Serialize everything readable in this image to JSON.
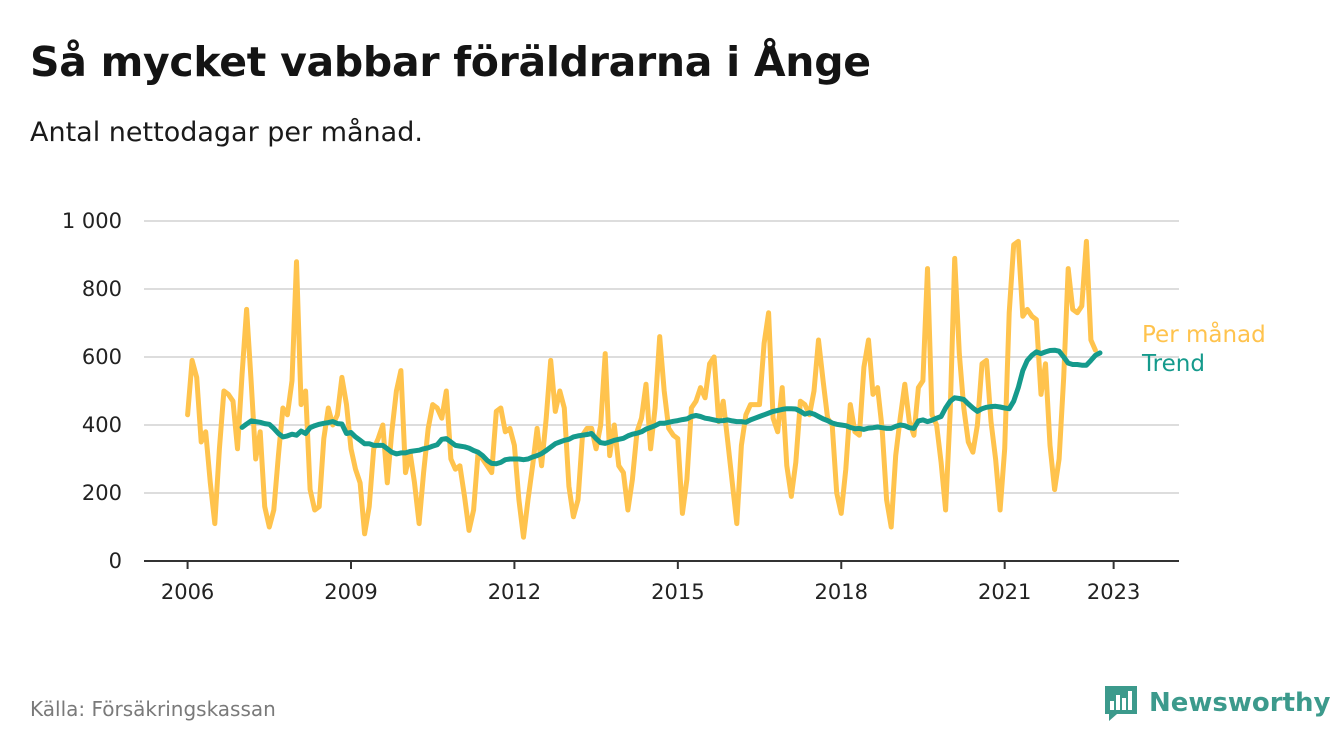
{
  "header": {
    "title": "Så mycket vabbar föräldrarna i Ånge",
    "subtitle": "Antal nettodagar per månad."
  },
  "footer": {
    "source": "Källa: Försäkringskassan",
    "brand": "Newsworthy",
    "brand_icon": "bar-chart-speech-bubble-icon"
  },
  "colors": {
    "per_manad": "#ffc34d",
    "trend": "#159a8c",
    "grid": "#dddddd",
    "axis": "#333333",
    "brand": "#3c9a8c"
  },
  "chart_data": {
    "type": "line",
    "x_start": 2006.0,
    "x_step": 0.08333,
    "xlim": [
      2005.2,
      2024.2
    ],
    "ylim": [
      0,
      1000
    ],
    "yticks": [
      0,
      200,
      400,
      600,
      800,
      1000
    ],
    "ytick_labels": [
      "0",
      "200",
      "400",
      "600",
      "800",
      "1 000"
    ],
    "xticks": [
      2006,
      2009,
      2012,
      2015,
      2018,
      2021,
      2023
    ],
    "xtick_labels": [
      "2006",
      "2009",
      "2012",
      "2015",
      "2018",
      "2021",
      "2023"
    ],
    "grid": true,
    "legend": "right, at line ends",
    "series": [
      {
        "name": "Per månad",
        "values": [
          430,
          590,
          540,
          350,
          380,
          230,
          110,
          330,
          500,
          490,
          470,
          330,
          550,
          740,
          530,
          300,
          380,
          160,
          100,
          150,
          310,
          450,
          430,
          530,
          880,
          460,
          500,
          210,
          150,
          160,
          360,
          450,
          400,
          430,
          540,
          460,
          330,
          270,
          230,
          80,
          160,
          330,
          360,
          400,
          230,
          380,
          500,
          560,
          260,
          320,
          230,
          110,
          260,
          390,
          460,
          450,
          420,
          500,
          300,
          270,
          280,
          190,
          90,
          150,
          320,
          300,
          280,
          260,
          440,
          450,
          380,
          390,
          340,
          180,
          70,
          180,
          280,
          390,
          280,
          420,
          590,
          440,
          500,
          450,
          220,
          130,
          180,
          370,
          390,
          390,
          330,
          400,
          610,
          310,
          400,
          280,
          260,
          150,
          240,
          380,
          420,
          520,
          330,
          450,
          660,
          500,
          390,
          370,
          360,
          140,
          240,
          450,
          470,
          510,
          480,
          580,
          600,
          410,
          470,
          350,
          230,
          110,
          340,
          430,
          460,
          460,
          460,
          640,
          730,
          420,
          380,
          510,
          280,
          190,
          290,
          470,
          460,
          430,
          500,
          650,
          530,
          420,
          400,
          200,
          140,
          270,
          460,
          380,
          370,
          570,
          650,
          490,
          510,
          390,
          180,
          100,
          310,
          420,
          520,
          410,
          370,
          510,
          530,
          860,
          430,
          400,
          290,
          150,
          440,
          890,
          610,
          450,
          350,
          320,
          400,
          580,
          590,
          410,
          300,
          150,
          330,
          730,
          930,
          940,
          720,
          740,
          720,
          710,
          490,
          580,
          340,
          210,
          300,
          540,
          860,
          740,
          730,
          750,
          940,
          650,
          620
        ]
      },
      {
        "name": "Trend",
        "start_index": 12,
        "values": [
          393,
          403,
          412,
          410,
          408,
          404,
          402,
          390,
          375,
          365,
          368,
          373,
          370,
          382,
          375,
          392,
          398,
          402,
          405,
          407,
          410,
          404,
          403,
          375,
          378,
          365,
          355,
          345,
          345,
          340,
          340,
          340,
          330,
          320,
          315,
          318,
          318,
          322,
          324,
          326,
          330,
          333,
          338,
          342,
          358,
          360,
          350,
          340,
          338,
          336,
          332,
          325,
          320,
          310,
          296,
          287,
          286,
          290,
          298,
          300,
          300,
          300,
          298,
          300,
          306,
          310,
          316,
          325,
          335,
          345,
          350,
          355,
          358,
          365,
          368,
          370,
          372,
          375,
          360,
          348,
          346,
          350,
          355,
          358,
          361,
          368,
          373,
          376,
          380,
          388,
          393,
          398,
          405,
          405,
          408,
          411,
          413,
          416,
          418,
          425,
          428,
          425,
          420,
          418,
          415,
          412,
          413,
          415,
          412,
          410,
          410,
          408,
          415,
          420,
          425,
          430,
          435,
          440,
          443,
          446,
          448,
          448,
          447,
          440,
          432,
          436,
          432,
          425,
          418,
          413,
          406,
          402,
          400,
          398,
          393,
          389,
          390,
          387,
          391,
          392,
          394,
          392,
          390,
          390,
          396,
          400,
          398,
          392,
          390,
          412,
          415,
          410,
          414,
          420,
          425,
          450,
          470,
          480,
          478,
          475,
          462,
          450,
          440,
          448,
          452,
          454,
          455,
          453,
          450,
          448,
          470,
          510,
          560,
          590,
          605,
          615,
          610,
          615,
          619,
          620,
          617,
          600,
          582,
          578,
          578,
          576,
          576,
          590,
          605,
          612
        ]
      }
    ]
  }
}
